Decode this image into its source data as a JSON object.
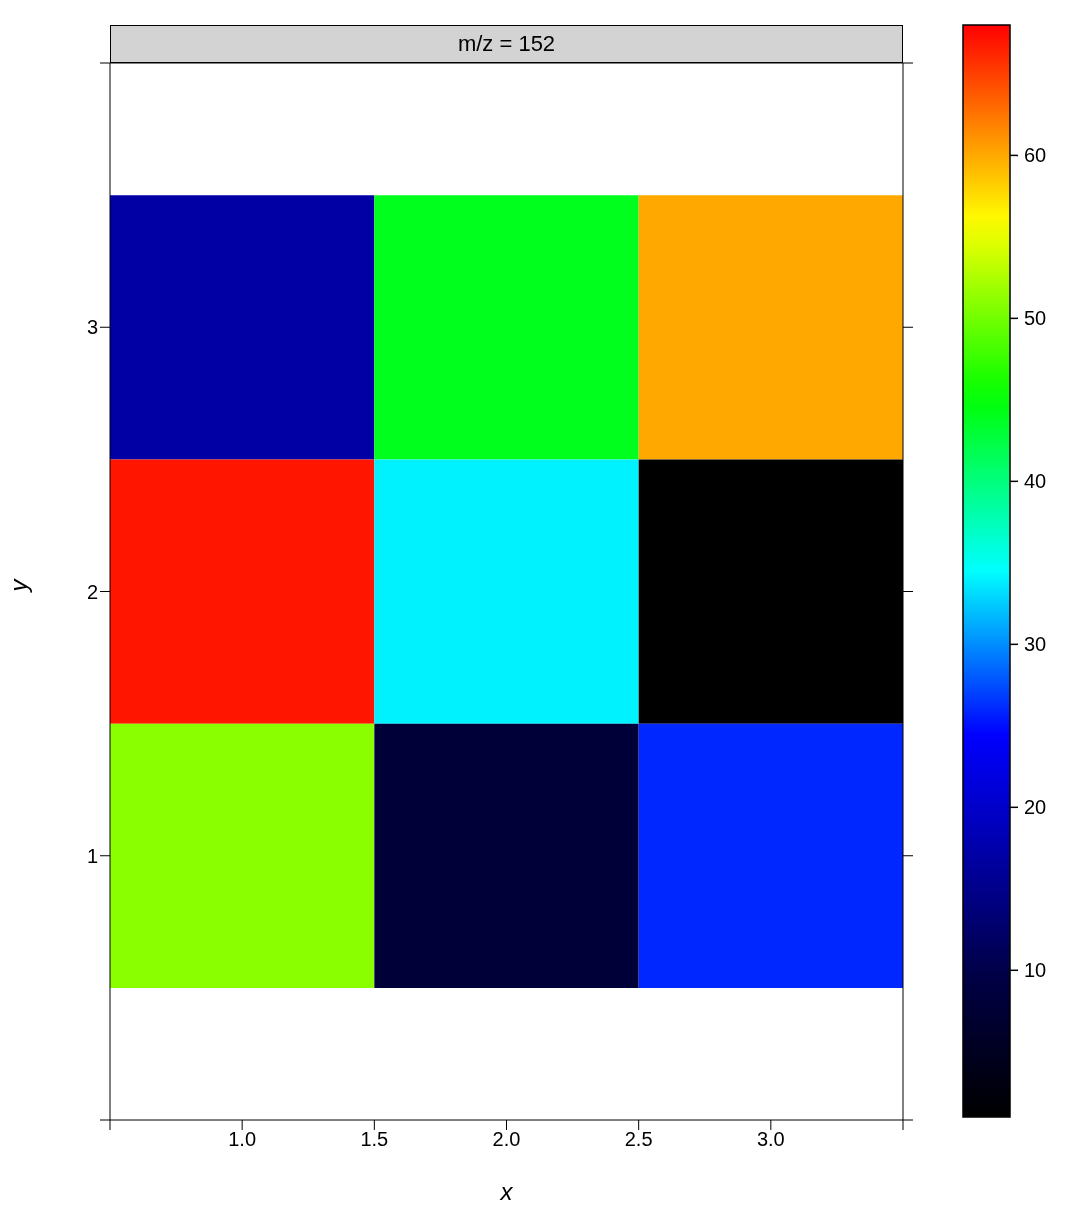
{
  "chart_data": {
    "type": "heatmap",
    "title": "m/z = 152",
    "xlabel": "x",
    "ylabel": "y",
    "x": [
      1,
      2,
      3
    ],
    "xlim": [
      0.5,
      3.5
    ],
    "xticks": [
      {
        "value": 0.5,
        "label": null
      },
      {
        "value": 1,
        "label": "1.0"
      },
      {
        "value": 1.5,
        "label": "1.5"
      },
      {
        "value": 2,
        "label": "2.0"
      },
      {
        "value": 2.5,
        "label": "2.5"
      },
      {
        "value": 3,
        "label": "3.0"
      },
      {
        "value": 3.5,
        "label": null
      }
    ],
    "ylim": [
      0,
      4
    ],
    "yticks": [
      {
        "value": 0,
        "label": null
      },
      1,
      2,
      3,
      {
        "value": 4,
        "label": null
      }
    ],
    "cells": [
      [
        17,
        44,
        60
      ],
      [
        67,
        34,
        1
      ],
      [
        51,
        8,
        26
      ]
    ],
    "clim": [
      1,
      68
    ],
    "cticks": [
      10,
      20,
      30,
      40,
      50,
      60
    ]
  }
}
